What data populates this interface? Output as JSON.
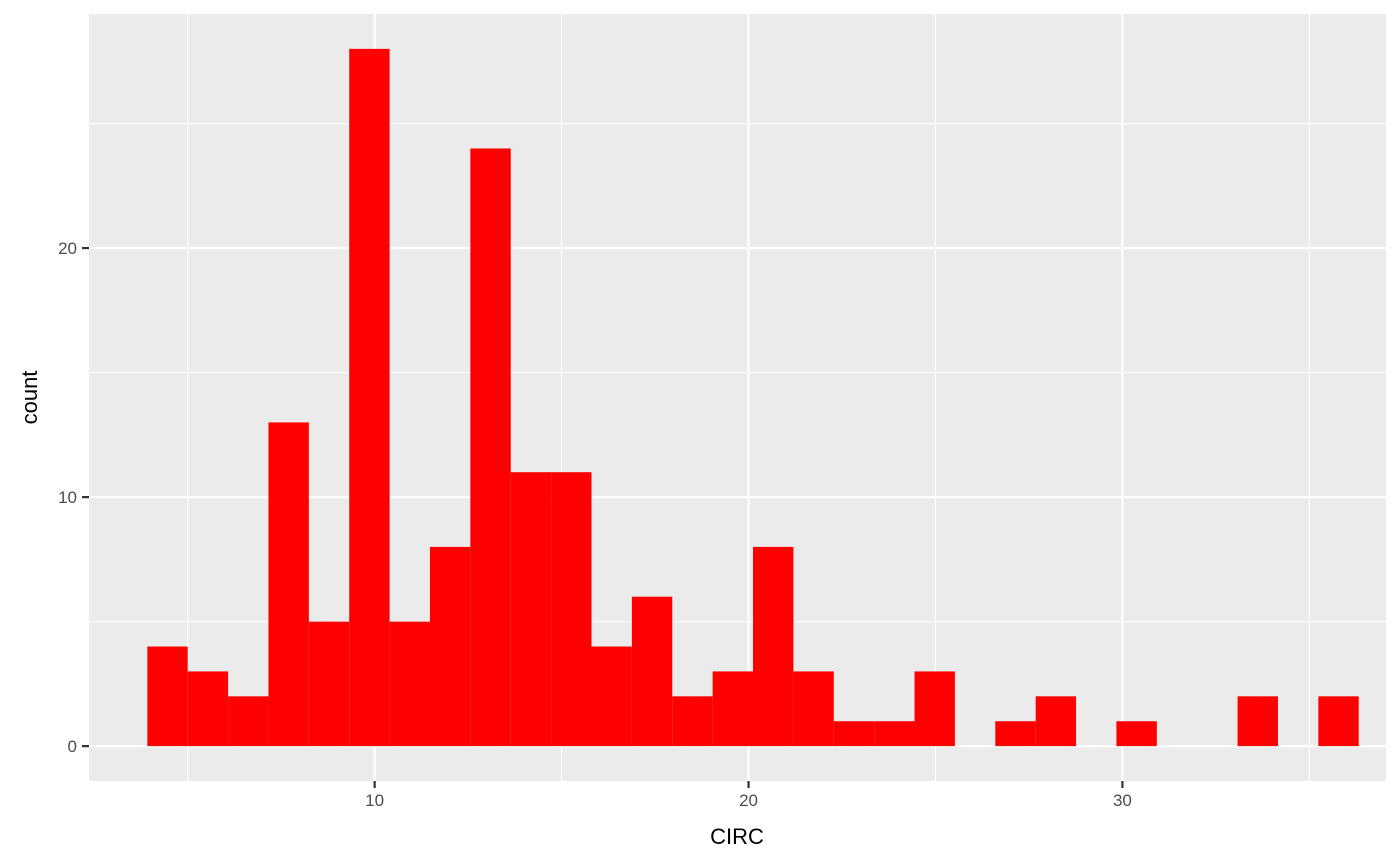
{
  "chart_data": {
    "type": "bar",
    "subtype": "histogram",
    "xlabel": "CIRC",
    "ylabel": "count",
    "xlim": [
      2.36,
      37.05
    ],
    "ylim": [
      -1.4,
      29.4
    ],
    "x_ticks": [
      10,
      20,
      30
    ],
    "y_ticks": [
      0,
      10,
      20
    ],
    "grid": true,
    "legend": "none",
    "bins": [
      {
        "x0": 3.92,
        "x1": 5.0,
        "count": 4
      },
      {
        "x0": 5.0,
        "x1": 6.08,
        "count": 3
      },
      {
        "x0": 6.08,
        "x1": 7.16,
        "count": 2
      },
      {
        "x0": 7.16,
        "x1": 8.24,
        "count": 13
      },
      {
        "x0": 8.24,
        "x1": 9.32,
        "count": 5
      },
      {
        "x0": 9.32,
        "x1": 10.4,
        "count": 28
      },
      {
        "x0": 10.4,
        "x1": 11.48,
        "count": 5
      },
      {
        "x0": 11.48,
        "x1": 12.56,
        "count": 8
      },
      {
        "x0": 12.56,
        "x1": 13.64,
        "count": 24
      },
      {
        "x0": 13.64,
        "x1": 14.72,
        "count": 11
      },
      {
        "x0": 14.72,
        "x1": 15.8,
        "count": 11
      },
      {
        "x0": 15.8,
        "x1": 16.88,
        "count": 4
      },
      {
        "x0": 16.88,
        "x1": 17.96,
        "count": 6
      },
      {
        "x0": 17.96,
        "x1": 19.04,
        "count": 2
      },
      {
        "x0": 19.04,
        "x1": 20.12,
        "count": 3
      },
      {
        "x0": 20.12,
        "x1": 21.2,
        "count": 8
      },
      {
        "x0": 21.2,
        "x1": 22.28,
        "count": 3
      },
      {
        "x0": 22.28,
        "x1": 23.36,
        "count": 1
      },
      {
        "x0": 23.36,
        "x1": 24.44,
        "count": 1
      },
      {
        "x0": 24.44,
        "x1": 25.52,
        "count": 3
      },
      {
        "x0": 25.52,
        "x1": 26.6,
        "count": 0
      },
      {
        "x0": 26.6,
        "x1": 27.68,
        "count": 1
      },
      {
        "x0": 27.68,
        "x1": 28.76,
        "count": 2
      },
      {
        "x0": 28.76,
        "x1": 29.84,
        "count": 0
      },
      {
        "x0": 29.84,
        "x1": 30.92,
        "count": 1
      },
      {
        "x0": 30.92,
        "x1": 32.0,
        "count": 0
      },
      {
        "x0": 32.0,
        "x1": 33.08,
        "count": 0
      },
      {
        "x0": 33.08,
        "x1": 34.16,
        "count": 2
      },
      {
        "x0": 34.16,
        "x1": 35.24,
        "count": 0
      },
      {
        "x0": 35.24,
        "x1": 36.32,
        "count": 2
      }
    ],
    "colors": {
      "bar_fill": "#ff0000",
      "panel_background": "#ebebeb",
      "grid_line": "#ffffff",
      "tick_label": "#4d4d4d",
      "tick_mark": "#333333"
    }
  }
}
